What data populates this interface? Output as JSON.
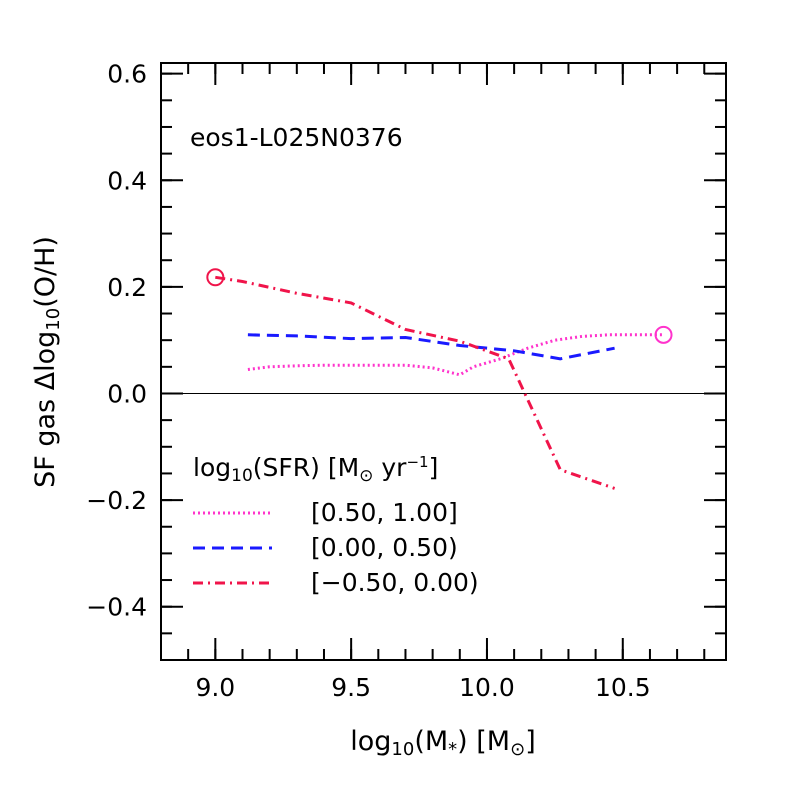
{
  "chart_data": {
    "type": "line",
    "annotation": "eos1-L025N0376",
    "xlabel": {
      "base": "log",
      "sub": "10",
      "open": "(M",
      "star": "*",
      "close": ")  [M",
      "sun": "⊙",
      "end": "]"
    },
    "ylabel": {
      "prefix": "SF gas  Δlog",
      "sub": "10",
      "suffix": "(O/H)"
    },
    "xlim": [
      8.8,
      10.88
    ],
    "ylim": [
      -0.5,
      0.62
    ],
    "x_ticks": [
      9.0,
      9.5,
      10.0,
      10.5
    ],
    "x_tick_labels": [
      "9.0",
      "9.5",
      "10.0",
      "10.5"
    ],
    "x_minor_step": 0.1,
    "y_ticks": [
      -0.4,
      -0.2,
      0.0,
      0.2,
      0.4,
      0.6
    ],
    "y_tick_labels": [
      "−0.4",
      "−0.2",
      "0.0",
      "0.2",
      "0.4",
      "0.6"
    ],
    "y_minor_step": 0.05,
    "zero_line": 0.0,
    "legend": {
      "title": {
        "base": "log",
        "sub": "10",
        "mid": "(SFR)  [M",
        "sun": "⊙",
        "unit": " yr",
        "exp": "−1",
        "end": "]"
      },
      "position": "lower-left"
    },
    "series": [
      {
        "name": "[0.50, 1.00]",
        "color": "#ff33cc",
        "dash": "dotted",
        "x": [
          9.12,
          9.2,
          9.3,
          9.4,
          9.5,
          9.6,
          9.7,
          9.8,
          9.9,
          9.95,
          10.05,
          10.15,
          10.25,
          10.35,
          10.45,
          10.55,
          10.65
        ],
        "y": [
          0.045,
          0.05,
          0.052,
          0.053,
          0.053,
          0.053,
          0.053,
          0.048,
          0.035,
          0.05,
          0.065,
          0.085,
          0.1,
          0.107,
          0.11,
          0.11,
          0.11
        ],
        "end_marker": "circle"
      },
      {
        "name": "[0.00, 0.50)",
        "color": "#1a1aff",
        "dash": "dashed",
        "x": [
          9.12,
          9.3,
          9.5,
          9.7,
          9.9,
          10.1,
          10.27,
          10.47
        ],
        "y": [
          0.11,
          0.108,
          0.103,
          0.105,
          0.09,
          0.08,
          0.065,
          0.085
        ]
      },
      {
        "name": "[−0.50, 0.00)",
        "color": "#f0144a",
        "dash": "dashdot",
        "x": [
          9.0,
          9.1,
          9.3,
          9.5,
          9.7,
          9.9,
          10.08,
          10.27,
          10.47
        ],
        "y": [
          0.218,
          0.21,
          0.188,
          0.17,
          0.12,
          0.098,
          0.065,
          -0.143,
          -0.178
        ],
        "start_marker": "circle"
      }
    ]
  }
}
